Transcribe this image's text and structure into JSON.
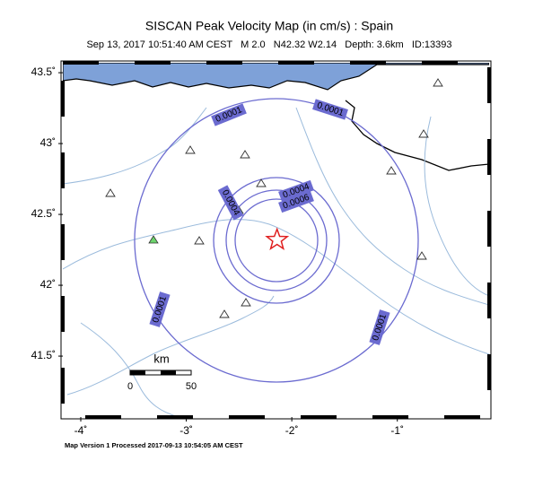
{
  "title": "SISCAN Peak Velocity Map (in cm/s) : Spain",
  "subtitle": "Sep 13, 2017 10:51:40 AM CEST   M 2.0   N42.32 W2.14   Depth: 3.6km   ID:13393",
  "map": {
    "xlim": [
      -4.17,
      -0.13
    ],
    "ylim": [
      41.07,
      43.57
    ],
    "xticks": [
      {
        "value": -4,
        "label": "-4˚"
      },
      {
        "value": -3,
        "label": "-3˚"
      },
      {
        "value": -2,
        "label": "-2˚"
      },
      {
        "value": -1,
        "label": "-1˚"
      }
    ],
    "yticks": [
      {
        "value": 43.5,
        "label": "43.5˚"
      },
      {
        "value": 43,
        "label": "43˚"
      },
      {
        "value": 42.5,
        "label": "42.5˚"
      },
      {
        "value": 42,
        "label": "42˚"
      },
      {
        "value": 41.5,
        "label": "41.5˚"
      }
    ],
    "epicenter": {
      "lon": -2.14,
      "lat": 42.32
    },
    "contour_labels": [
      "0.0001",
      "0.0001",
      "0.0001",
      "0.0001",
      "0.0004",
      "0.0004",
      "0.0006"
    ],
    "scale_bar": {
      "unit": "km",
      "start": "0",
      "end": "50"
    }
  },
  "footer": "Map Version 1 Processed 2017-09-13 10:54:05 AM CEST"
}
